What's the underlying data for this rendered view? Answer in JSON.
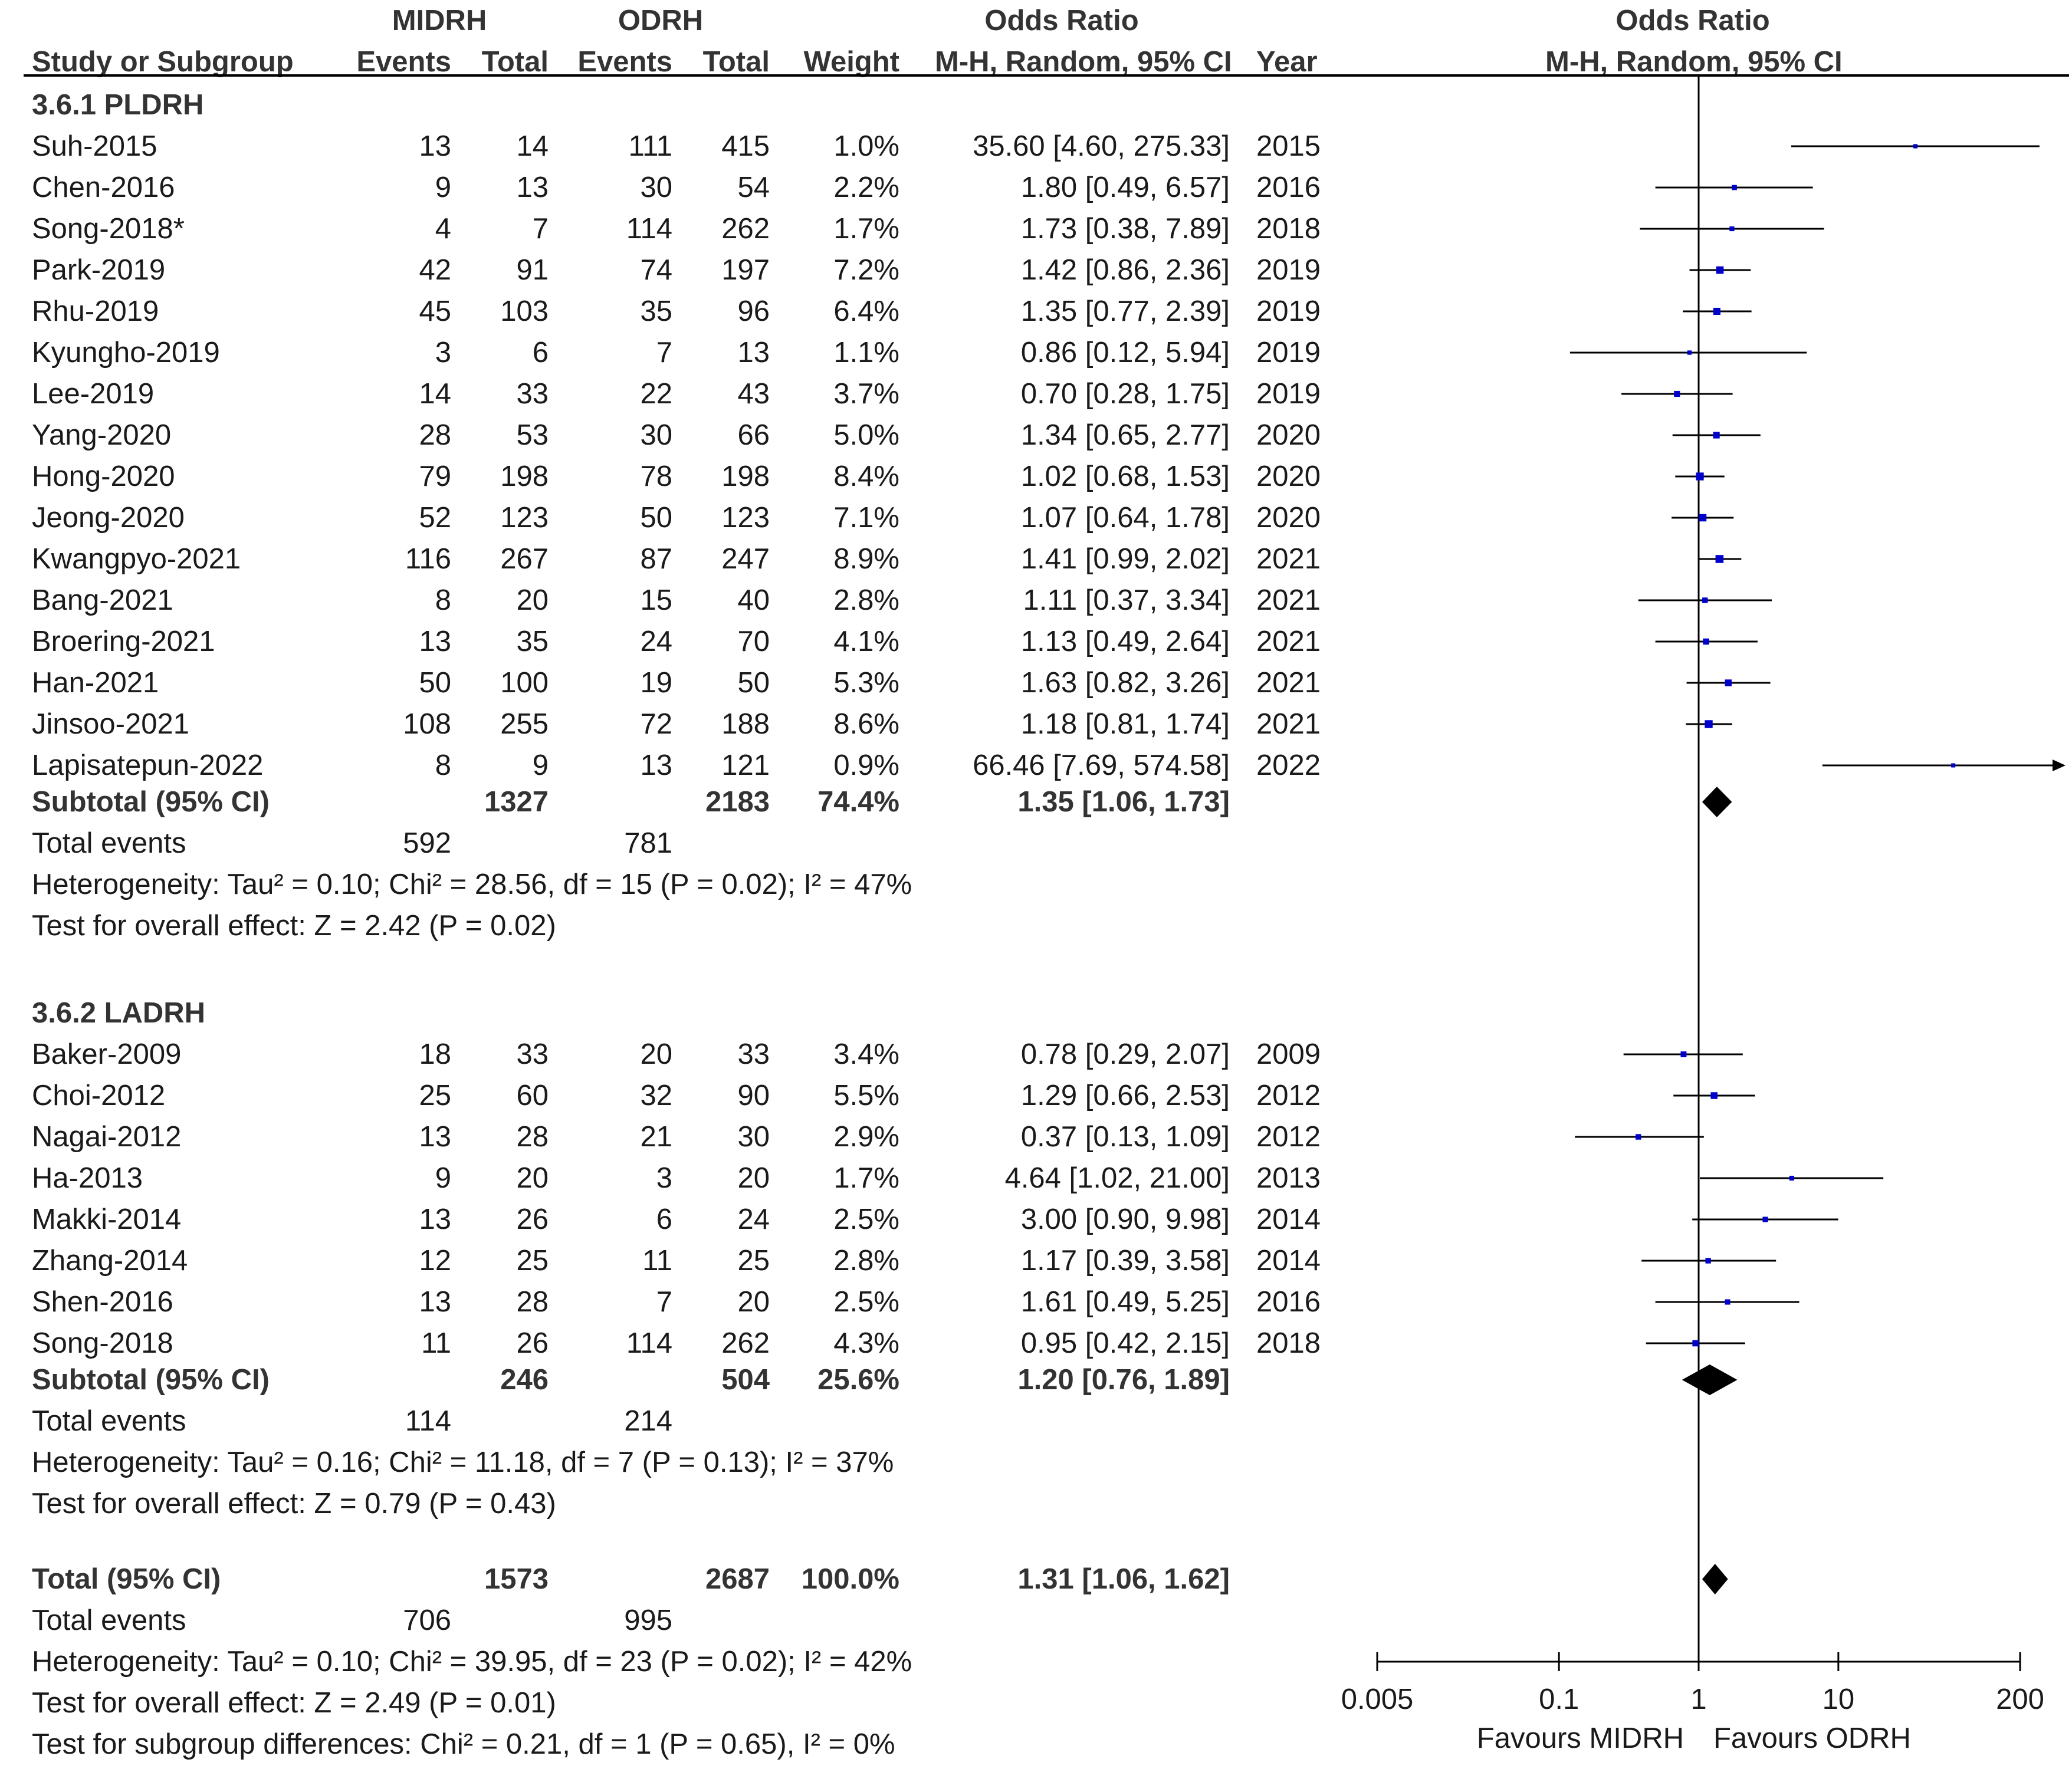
{
  "header": {
    "group1": "MIDRH",
    "group2": "ODRH",
    "or_table": "Odds Ratio",
    "or_plot": "Odds Ratio",
    "study_col": "Study or Subgroup",
    "events1": "Events",
    "total1": "Total",
    "events2": "Events",
    "total2": "Total",
    "weight": "Weight",
    "method": "M-H, Random, 95% CI",
    "year": "Year",
    "method_plot": "M-H, Random, 95% CI"
  },
  "subgroups": [
    {
      "title": "3.6.1 PLDRH",
      "studies": [
        {
          "name": "Suh-2015",
          "e1": "13",
          "t1": "14",
          "e2": "111",
          "t2": "415",
          "weight": "1.0%",
          "ci": "35.60 [4.60, 275.33]",
          "year": "2015"
        },
        {
          "name": "Chen-2016",
          "e1": "9",
          "t1": "13",
          "e2": "30",
          "t2": "54",
          "weight": "2.2%",
          "ci": "1.80 [0.49, 6.57]",
          "year": "2016"
        },
        {
          "name": "Song-2018*",
          "e1": "4",
          "t1": "7",
          "e2": "114",
          "t2": "262",
          "weight": "1.7%",
          "ci": "1.73 [0.38, 7.89]",
          "year": "2018"
        },
        {
          "name": "Park-2019",
          "e1": "42",
          "t1": "91",
          "e2": "74",
          "t2": "197",
          "weight": "7.2%",
          "ci": "1.42 [0.86, 2.36]",
          "year": "2019"
        },
        {
          "name": "Rhu-2019",
          "e1": "45",
          "t1": "103",
          "e2": "35",
          "t2": "96",
          "weight": "6.4%",
          "ci": "1.35 [0.77, 2.39]",
          "year": "2019"
        },
        {
          "name": "Kyungho-2019",
          "e1": "3",
          "t1": "6",
          "e2": "7",
          "t2": "13",
          "weight": "1.1%",
          "ci": "0.86 [0.12, 5.94]",
          "year": "2019"
        },
        {
          "name": "Lee-2019",
          "e1": "14",
          "t1": "33",
          "e2": "22",
          "t2": "43",
          "weight": "3.7%",
          "ci": "0.70 [0.28, 1.75]",
          "year": "2019"
        },
        {
          "name": "Yang-2020",
          "e1": "28",
          "t1": "53",
          "e2": "30",
          "t2": "66",
          "weight": "5.0%",
          "ci": "1.34 [0.65, 2.77]",
          "year": "2020"
        },
        {
          "name": "Hong-2020",
          "e1": "79",
          "t1": "198",
          "e2": "78",
          "t2": "198",
          "weight": "8.4%",
          "ci": "1.02 [0.68, 1.53]",
          "year": "2020"
        },
        {
          "name": "Jeong-2020",
          "e1": "52",
          "t1": "123",
          "e2": "50",
          "t2": "123",
          "weight": "7.1%",
          "ci": "1.07 [0.64, 1.78]",
          "year": "2020"
        },
        {
          "name": "Kwangpyo-2021",
          "e1": "116",
          "t1": "267",
          "e2": "87",
          "t2": "247",
          "weight": "8.9%",
          "ci": "1.41 [0.99, 2.02]",
          "year": "2021"
        },
        {
          "name": "Bang-2021",
          "e1": "8",
          "t1": "20",
          "e2": "15",
          "t2": "40",
          "weight": "2.8%",
          "ci": "1.11 [0.37, 3.34]",
          "year": "2021"
        },
        {
          "name": "Broering-2021",
          "e1": "13",
          "t1": "35",
          "e2": "24",
          "t2": "70",
          "weight": "4.1%",
          "ci": "1.13 [0.49, 2.64]",
          "year": "2021"
        },
        {
          "name": "Han-2021",
          "e1": "50",
          "t1": "100",
          "e2": "19",
          "t2": "50",
          "weight": "5.3%",
          "ci": "1.63 [0.82, 3.26]",
          "year": "2021"
        },
        {
          "name": "Jinsoo-2021",
          "e1": "108",
          "t1": "255",
          "e2": "72",
          "t2": "188",
          "weight": "8.6%",
          "ci": "1.18 [0.81, 1.74]",
          "year": "2021"
        },
        {
          "name": "Lapisatepun-2022",
          "e1": "8",
          "t1": "9",
          "e2": "13",
          "t2": "121",
          "weight": "0.9%",
          "ci": "66.46 [7.69, 574.58]",
          "year": "2022"
        }
      ],
      "subtotal": {
        "label": "Subtotal (95% CI)",
        "t1": "1327",
        "t2": "2183",
        "weight": "74.4%",
        "ci": "1.35 [1.06, 1.73]"
      },
      "events": {
        "label": "Total events",
        "e1": "592",
        "e2": "781"
      },
      "heterogeneity": "Heterogeneity: Tau² = 0.10; Chi² = 28.56, df = 15 (P = 0.02); I² = 47%",
      "overall": "Test for overall effect: Z = 2.42 (P = 0.02)"
    },
    {
      "title": "3.6.2 LADRH",
      "studies": [
        {
          "name": "Baker-2009",
          "e1": "18",
          "t1": "33",
          "e2": "20",
          "t2": "33",
          "weight": "3.4%",
          "ci": "0.78 [0.29, 2.07]",
          "year": "2009"
        },
        {
          "name": "Choi-2012",
          "e1": "25",
          "t1": "60",
          "e2": "32",
          "t2": "90",
          "weight": "5.5%",
          "ci": "1.29 [0.66, 2.53]",
          "year": "2012"
        },
        {
          "name": "Nagai-2012",
          "e1": "13",
          "t1": "28",
          "e2": "21",
          "t2": "30",
          "weight": "2.9%",
          "ci": "0.37 [0.13, 1.09]",
          "year": "2012"
        },
        {
          "name": "Ha-2013",
          "e1": "9",
          "t1": "20",
          "e2": "3",
          "t2": "20",
          "weight": "1.7%",
          "ci": "4.64 [1.02, 21.00]",
          "year": "2013"
        },
        {
          "name": "Makki-2014",
          "e1": "13",
          "t1": "26",
          "e2": "6",
          "t2": "24",
          "weight": "2.5%",
          "ci": "3.00 [0.90, 9.98]",
          "year": "2014"
        },
        {
          "name": "Zhang-2014",
          "e1": "12",
          "t1": "25",
          "e2": "11",
          "t2": "25",
          "weight": "2.8%",
          "ci": "1.17 [0.39, 3.58]",
          "year": "2014"
        },
        {
          "name": "Shen-2016",
          "e1": "13",
          "t1": "28",
          "e2": "7",
          "t2": "20",
          "weight": "2.5%",
          "ci": "1.61 [0.49, 5.25]",
          "year": "2016"
        },
        {
          "name": "Song-2018",
          "e1": "11",
          "t1": "26",
          "e2": "114",
          "t2": "262",
          "weight": "4.3%",
          "ci": "0.95 [0.42, 2.15]",
          "year": "2018"
        }
      ],
      "subtotal": {
        "label": "Subtotal (95% CI)",
        "t1": "246",
        "t2": "504",
        "weight": "25.6%",
        "ci": "1.20 [0.76, 1.89]"
      },
      "events": {
        "label": "Total events",
        "e1": "114",
        "e2": "214"
      },
      "heterogeneity": "Heterogeneity: Tau² = 0.16; Chi² = 11.18, df = 7 (P = 0.13); I² = 37%",
      "overall": "Test for overall effect: Z = 0.79 (P = 0.43)"
    }
  ],
  "total": {
    "label": "Total (95% CI)",
    "t1": "1573",
    "t2": "2687",
    "weight": "100.0%",
    "ci": "1.31 [1.06, 1.62]",
    "events": {
      "label": "Total events",
      "e1": "706",
      "e2": "995"
    },
    "heterogeneity": "Heterogeneity: Tau² = 0.10; Chi² = 39.95, df = 23 (P = 0.02); I² = 42%",
    "overall": "Test for overall effect: Z = 2.49 (P = 0.01)",
    "subgroup_diff": "Test for subgroup differences: Chi² = 0.21, df = 1 (P = 0.65), I² = 0%"
  },
  "colors": {
    "point": "#0000cc",
    "line": "#000000",
    "text": "#1a1a1a",
    "header": "#333333"
  },
  "chart_data": {
    "type": "forest",
    "title": "Odds Ratio",
    "subtitle": "M-H, Random, 95% CI",
    "x_scale": "log",
    "xlim": [
      0.005,
      200
    ],
    "xticks": [
      0.005,
      0.1,
      1,
      10,
      200
    ],
    "xtick_labels": [
      "0.005",
      "0.1",
      "1",
      "10",
      "200"
    ],
    "reference_line": 1,
    "favours_left": "Favours MIDRH",
    "favours_right": "Favours ODRH",
    "studies": [
      {
        "name": "Suh-2015",
        "or": 35.6,
        "lo": 4.6,
        "hi": 275.33,
        "weight": 1.0
      },
      {
        "name": "Chen-2016",
        "or": 1.8,
        "lo": 0.49,
        "hi": 6.57,
        "weight": 2.2
      },
      {
        "name": "Song-2018*",
        "or": 1.73,
        "lo": 0.38,
        "hi": 7.89,
        "weight": 1.7
      },
      {
        "name": "Park-2019",
        "or": 1.42,
        "lo": 0.86,
        "hi": 2.36,
        "weight": 7.2
      },
      {
        "name": "Rhu-2019",
        "or": 1.35,
        "lo": 0.77,
        "hi": 2.39,
        "weight": 6.4
      },
      {
        "name": "Kyungho-2019",
        "or": 0.86,
        "lo": 0.12,
        "hi": 5.94,
        "weight": 1.1
      },
      {
        "name": "Lee-2019",
        "or": 0.7,
        "lo": 0.28,
        "hi": 1.75,
        "weight": 3.7
      },
      {
        "name": "Yang-2020",
        "or": 1.34,
        "lo": 0.65,
        "hi": 2.77,
        "weight": 5.0
      },
      {
        "name": "Hong-2020",
        "or": 1.02,
        "lo": 0.68,
        "hi": 1.53,
        "weight": 8.4
      },
      {
        "name": "Jeong-2020",
        "or": 1.07,
        "lo": 0.64,
        "hi": 1.78,
        "weight": 7.1
      },
      {
        "name": "Kwangpyo-2021",
        "or": 1.41,
        "lo": 0.99,
        "hi": 2.02,
        "weight": 8.9
      },
      {
        "name": "Bang-2021",
        "or": 1.11,
        "lo": 0.37,
        "hi": 3.34,
        "weight": 2.8
      },
      {
        "name": "Broering-2021",
        "or": 1.13,
        "lo": 0.49,
        "hi": 2.64,
        "weight": 4.1
      },
      {
        "name": "Han-2021",
        "or": 1.63,
        "lo": 0.82,
        "hi": 3.26,
        "weight": 5.3
      },
      {
        "name": "Jinsoo-2021",
        "or": 1.18,
        "lo": 0.81,
        "hi": 1.74,
        "weight": 8.6
      },
      {
        "name": "Lapisatepun-2022",
        "or": 66.46,
        "lo": 7.69,
        "hi": 574.58,
        "weight": 0.9
      },
      {
        "name": "Subtotal PLDRH",
        "or": 1.35,
        "lo": 1.06,
        "hi": 1.73,
        "diamond": true
      },
      {
        "name": "Baker-2009",
        "or": 0.78,
        "lo": 0.29,
        "hi": 2.07,
        "weight": 3.4
      },
      {
        "name": "Choi-2012",
        "or": 1.29,
        "lo": 0.66,
        "hi": 2.53,
        "weight": 5.5
      },
      {
        "name": "Nagai-2012",
        "or": 0.37,
        "lo": 0.13,
        "hi": 1.09,
        "weight": 2.9
      },
      {
        "name": "Ha-2013",
        "or": 4.64,
        "lo": 1.02,
        "hi": 21.0,
        "weight": 1.7
      },
      {
        "name": "Makki-2014",
        "or": 3.0,
        "lo": 0.9,
        "hi": 9.98,
        "weight": 2.5
      },
      {
        "name": "Zhang-2014",
        "or": 1.17,
        "lo": 0.39,
        "hi": 3.58,
        "weight": 2.8
      },
      {
        "name": "Shen-2016",
        "or": 1.61,
        "lo": 0.49,
        "hi": 5.25,
        "weight": 2.5
      },
      {
        "name": "Song-2018",
        "or": 0.95,
        "lo": 0.42,
        "hi": 2.15,
        "weight": 4.3
      },
      {
        "name": "Subtotal LADRH",
        "or": 1.2,
        "lo": 0.76,
        "hi": 1.89,
        "diamond": true
      },
      {
        "name": "Total",
        "or": 1.31,
        "lo": 1.06,
        "hi": 1.62,
        "diamond": true
      }
    ]
  }
}
